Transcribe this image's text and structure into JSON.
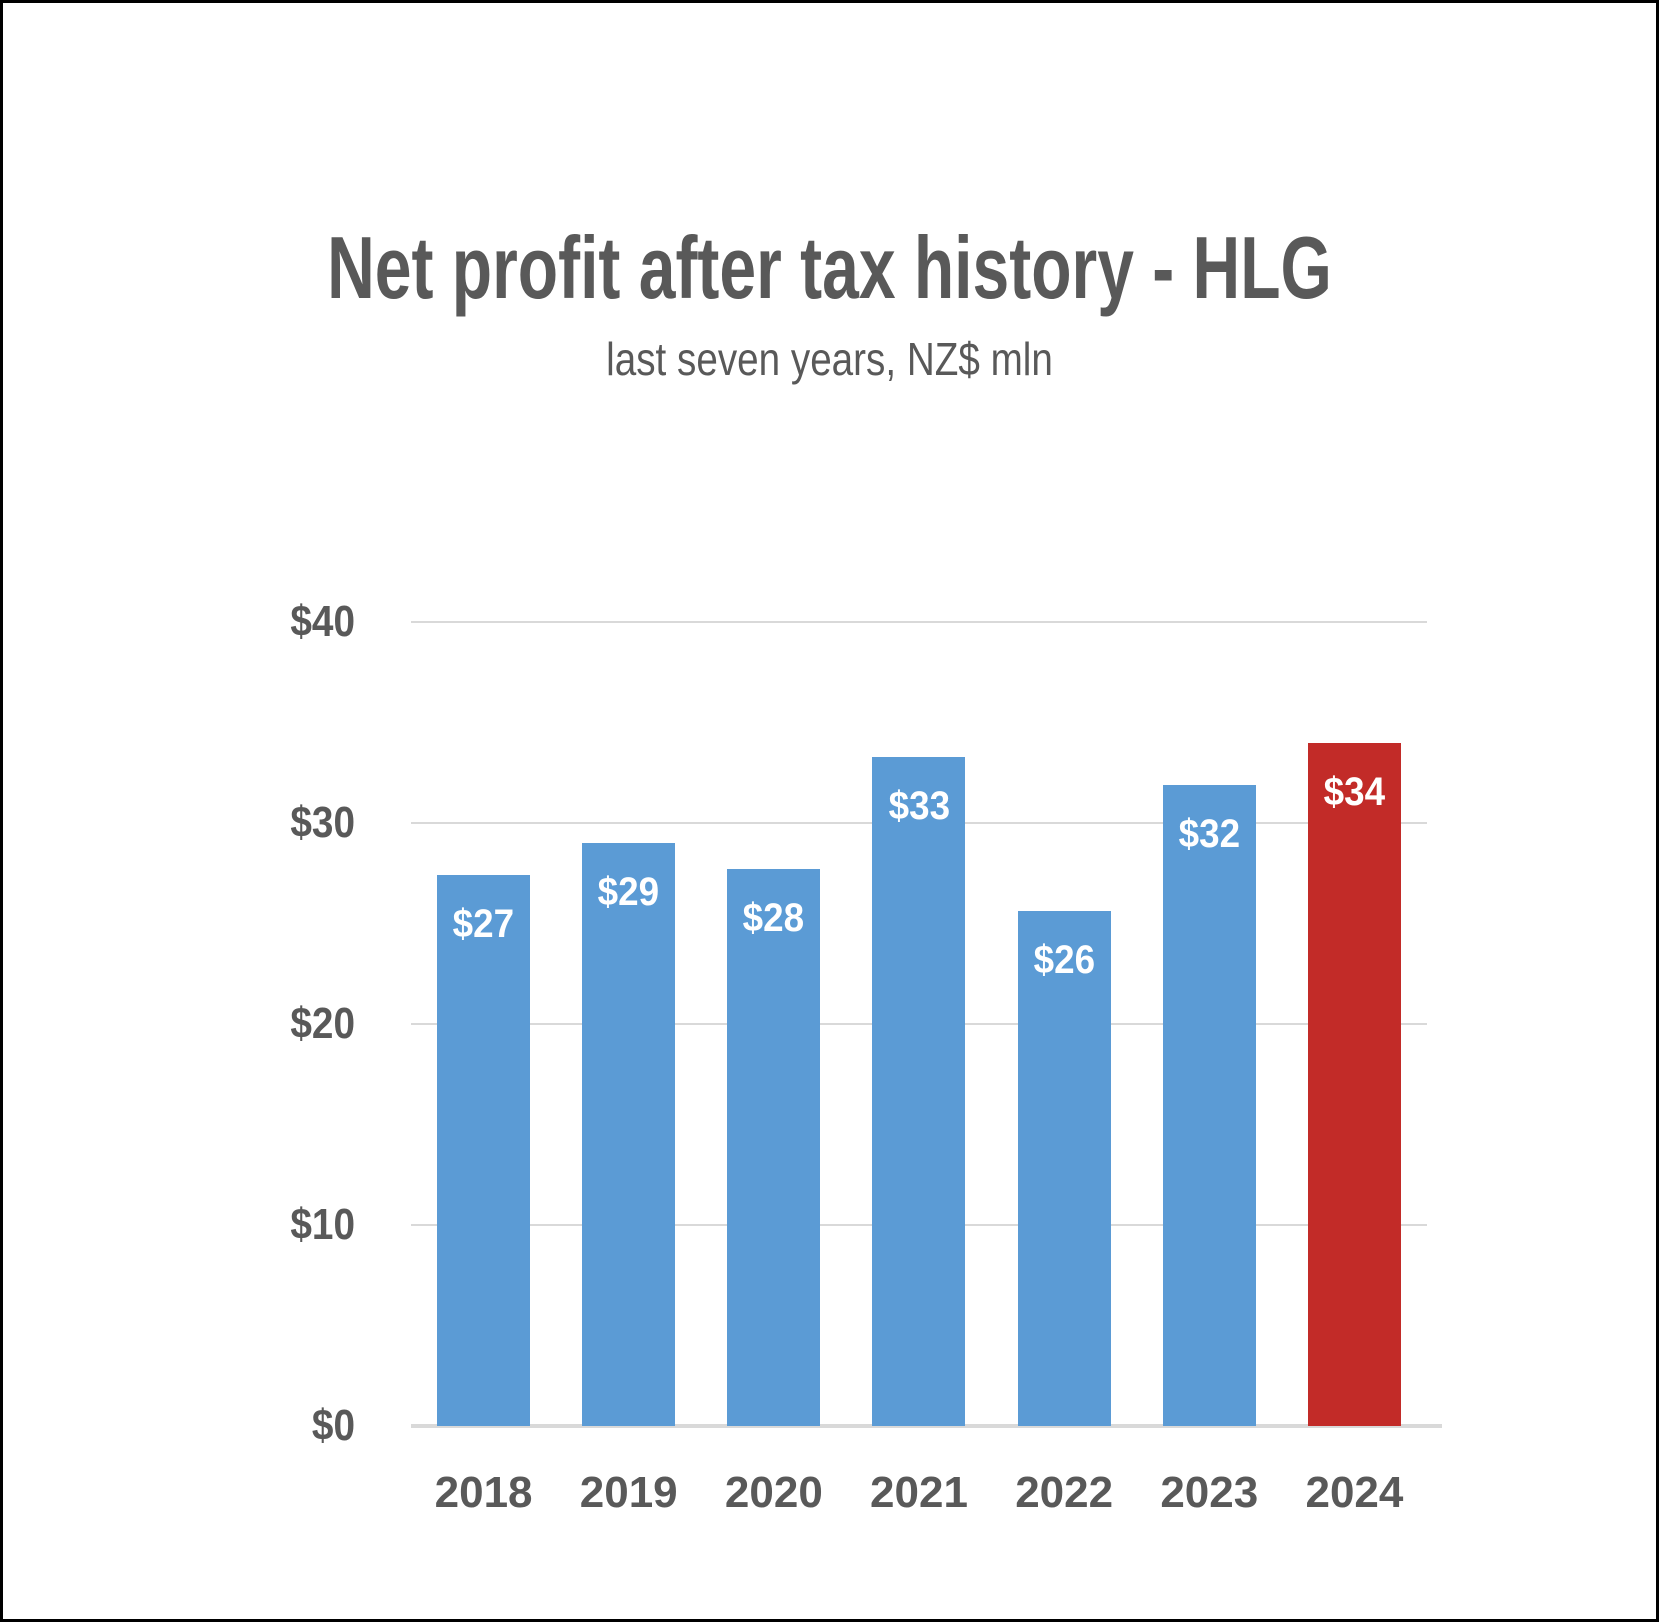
{
  "page": {
    "title": "Net profit after tax history - HLG",
    "subtitle": "last seven years, NZ$ mln"
  },
  "chart_data": {
    "type": "bar",
    "title": "Net profit after tax history - HLG",
    "subtitle": "last seven years, NZ$ mln",
    "categories": [
      "2018",
      "2019",
      "2020",
      "2021",
      "2022",
      "2023",
      "2024"
    ],
    "values": [
      27,
      29,
      28,
      33,
      26,
      32,
      34
    ],
    "data_labels": [
      "$27",
      "$29",
      "$28",
      "$33",
      "$26",
      "$32",
      "$34"
    ],
    "plotted_values": [
      27.4,
      29.0,
      27.7,
      33.3,
      25.6,
      31.9,
      34.0
    ],
    "bar_colors": [
      "#5B9BD5",
      "#5B9BD5",
      "#5B9BD5",
      "#5B9BD5",
      "#5B9BD5",
      "#5B9BD5",
      "#C22B28"
    ],
    "highlight_category": "2024",
    "units": "NZ$ mln",
    "xlabel": "",
    "ylabel": "",
    "ylim": [
      0,
      40
    ],
    "y_ticks": {
      "values": [
        0,
        10,
        20,
        30,
        40
      ],
      "labels": [
        "$0",
        "$10",
        "$20",
        "$30",
        "$40"
      ]
    },
    "grid": "horizontal gridlines on",
    "legend": "none",
    "colors": {
      "bar_default": "#5B9BD5",
      "bar_highlight": "#C22B28",
      "text_gray": "#595959",
      "gridline": "#D9D9D9",
      "data_label_text": "#FFFFFF",
      "page_border": "#000000",
      "background": "#FFFFFF"
    }
  }
}
